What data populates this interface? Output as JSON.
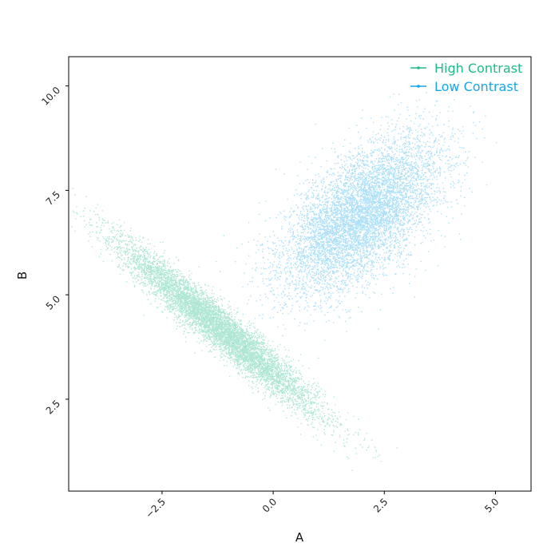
{
  "chart_data": {
    "type": "scatter",
    "title": "",
    "xlabel": "A",
    "ylabel": "B",
    "xlim": [
      -4.6,
      5.8
    ],
    "ylim": [
      0.3,
      10.7
    ],
    "xticks": [
      -2.5,
      0.0,
      2.5,
      5.0
    ],
    "xtick_labels": [
      "−2.5",
      "0.0",
      "2.5",
      "5.0"
    ],
    "yticks": [
      2.5,
      5.0,
      7.5,
      10.0
    ],
    "ytick_labels": [
      "2.5",
      "5.0",
      "7.5",
      "10.0"
    ],
    "grid": false,
    "legend_position": "top-right",
    "series": [
      {
        "name": "High Contrast",
        "color": "#1dbb85",
        "n_points": 7000,
        "distribution": {
          "mean": [
            -1.2,
            4.2
          ],
          "std": [
            1.1,
            1.0
          ],
          "corr": -0.96
        },
        "x": [
          -4.3,
          -3.8,
          -3.5,
          -3.0,
          -2.5,
          -2.0,
          -1.5,
          -1.0,
          -0.5,
          0.0,
          0.5,
          1.0,
          1.5,
          2.0
        ],
        "y": [
          7.2,
          6.8,
          6.4,
          6.0,
          5.6,
          5.1,
          4.6,
          4.1,
          3.6,
          3.1,
          2.6,
          2.1,
          1.7,
          1.0
        ]
      },
      {
        "name": "Low Contrast",
        "color": "#14a7e8",
        "n_points": 7000,
        "distribution": {
          "mean": [
            2.0,
            6.9
          ],
          "std": [
            0.9,
            0.95
          ],
          "corr": 0.62
        },
        "x": [
          0.0,
          0.5,
          1.0,
          1.5,
          2.0,
          2.5,
          3.0,
          3.5,
          4.0,
          4.5,
          5.0
        ],
        "y": [
          5.2,
          5.6,
          6.0,
          6.4,
          6.8,
          7.2,
          7.6,
          8.0,
          8.4,
          8.9,
          9.5
        ]
      }
    ]
  }
}
